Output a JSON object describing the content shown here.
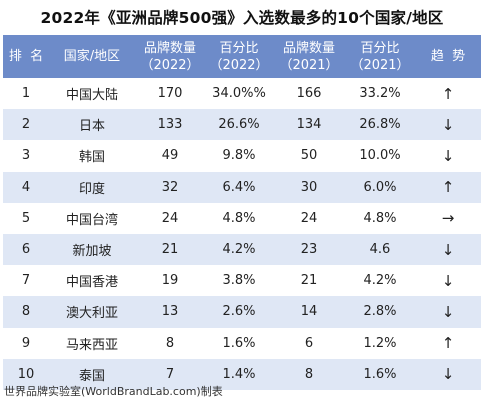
{
  "title": "2022年《亚洲品牌500强》入选数最多的10个国家/地区",
  "headers": {
    "rank": "排  名",
    "country": "国家/地区",
    "count2022": "品牌数量",
    "count2022_year": "（2022）",
    "pct2022": "百分比",
    "pct2022_year": "（2022）",
    "count2021": "品牌数量",
    "count2021_year": "（2021）",
    "pct2021": "百分比",
    "pct2021_year": "（2021）",
    "trend": "趋  势"
  },
  "rows": [
    {
      "rank": "1",
      "country": "中国大陆",
      "count2022": "170",
      "pct2022": "34.0%%",
      "count2021": "166",
      "pct2021": "33.2%",
      "trend": "↑"
    },
    {
      "rank": "2",
      "country": "日本",
      "count2022": "133",
      "pct2022": "26.6%",
      "count2021": "134",
      "pct2021": "26.8%",
      "trend": "↓"
    },
    {
      "rank": "3",
      "country": "韩国",
      "count2022": "49",
      "pct2022": "9.8%",
      "count2021": "50",
      "pct2021": "10.0%",
      "trend": "↓"
    },
    {
      "rank": "4",
      "country": "印度",
      "count2022": "32",
      "pct2022": "6.4%",
      "count2021": "30",
      "pct2021": "6.0%",
      "trend": "↑"
    },
    {
      "rank": "5",
      "country": "中国台湾",
      "count2022": "24",
      "pct2022": "4.8%",
      "count2021": "24",
      "pct2021": "4.8%",
      "trend": "→"
    },
    {
      "rank": "6",
      "country": "新加坡",
      "count2022": "21",
      "pct2022": "4.2%",
      "count2021": "23",
      "pct2021": "4.6",
      "trend": "↓"
    },
    {
      "rank": "7",
      "country": "中国香港",
      "count2022": "19",
      "pct2022": "3.8%",
      "count2021": "21",
      "pct2021": "4.2%",
      "trend": "↓"
    },
    {
      "rank": "8",
      "country": "澳大利亚",
      "count2022": "13",
      "pct2022": "2.6%",
      "count2021": "14",
      "pct2021": "2.8%",
      "trend": "↓"
    },
    {
      "rank": "9",
      "country": "马来西亚",
      "count2022": "8",
      "pct2022": "1.6%",
      "count2021": "6",
      "pct2021": "1.2%",
      "trend": "↑"
    },
    {
      "rank": "10",
      "country": "泰国",
      "count2022": "7",
      "pct2022": "1.4%",
      "count2021": "8",
      "pct2021": "1.6%",
      "trend": "↓"
    }
  ],
  "footer": "世界品牌实验室(WorldBrandLab.com)制表"
}
